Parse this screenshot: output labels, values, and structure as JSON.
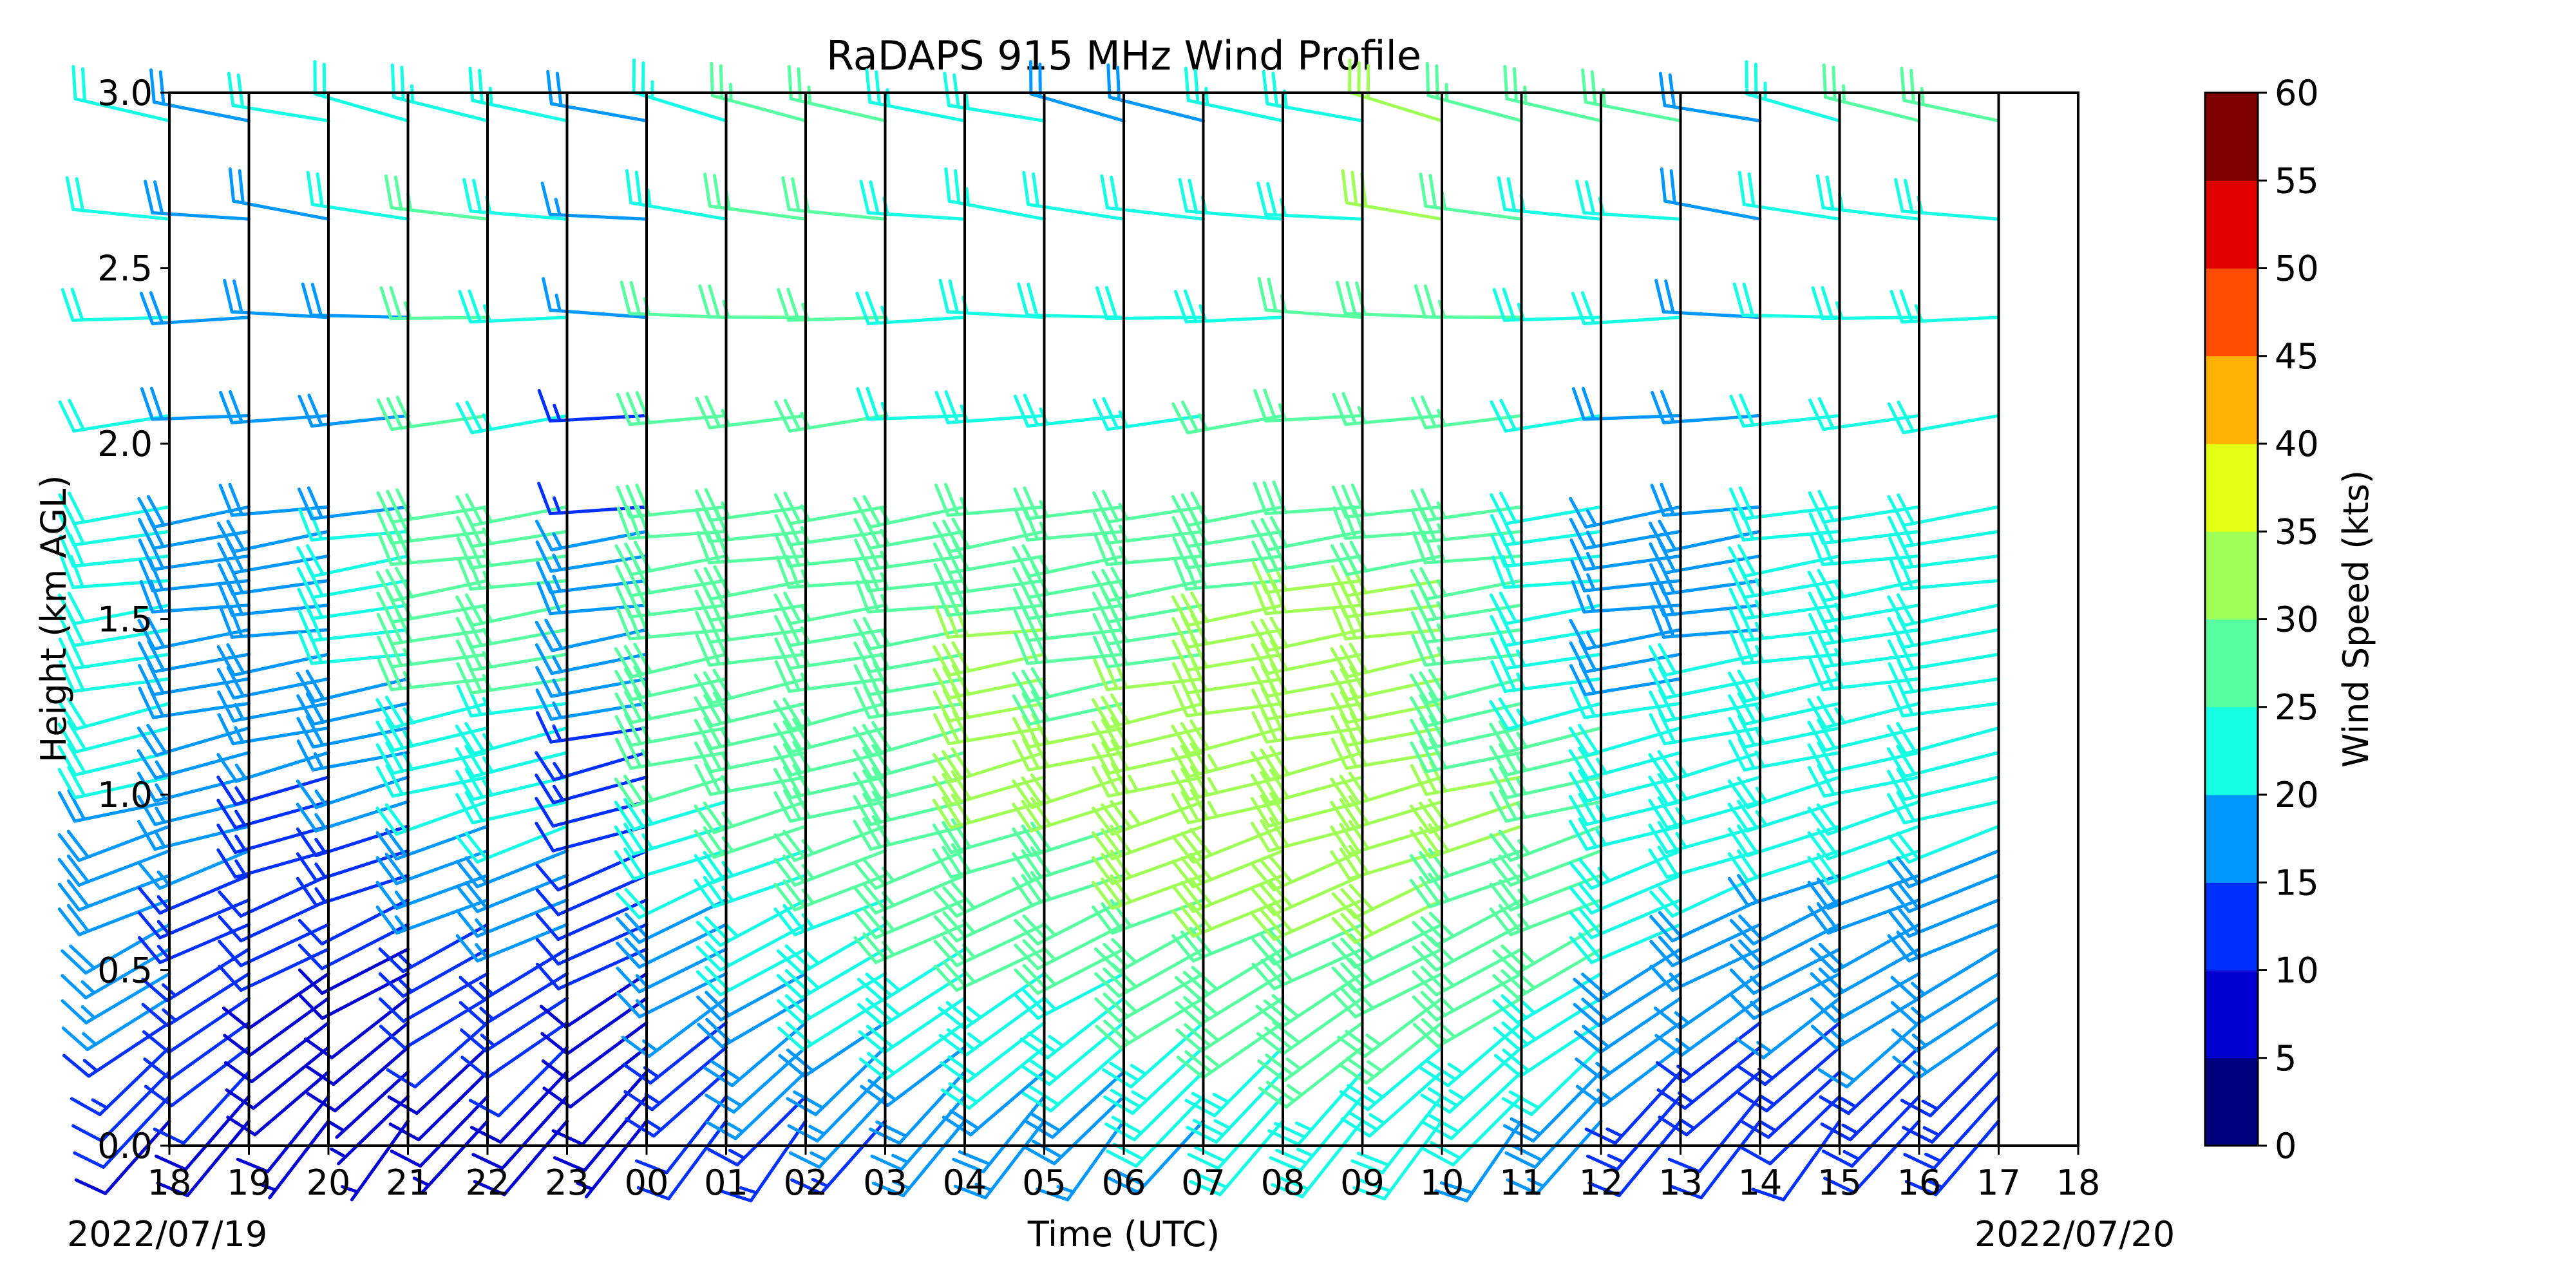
{
  "chart_data": {
    "type": "wind-barb-profile",
    "title": "RaDAPS 915 MHz Wind Profile",
    "xlabel": "Time (UTC)",
    "ylabel": "Height (km AGL)",
    "ylim": [
      0.0,
      3.0
    ],
    "y_ticks": [
      "0.0",
      "0.5",
      "1.0",
      "1.5",
      "2.0",
      "2.5",
      "3.0"
    ],
    "x_ticks": [
      "18",
      "19",
      "20",
      "21",
      "22",
      "23",
      "00",
      "01",
      "02",
      "03",
      "04",
      "05",
      "06",
      "07",
      "08",
      "09",
      "10",
      "11",
      "12",
      "13",
      "14",
      "15",
      "16",
      "17",
      "18"
    ],
    "start_date_label": "2022/07/19",
    "end_date_label": "2022/07/20",
    "lower_levels_km": [
      0.07,
      0.14,
      0.21,
      0.28,
      0.35,
      0.42,
      0.49,
      0.56,
      0.63,
      0.7,
      0.77,
      0.84,
      0.91,
      0.98,
      1.05,
      1.12,
      1.19,
      1.26,
      1.33,
      1.4,
      1.47,
      1.54,
      1.61,
      1.68,
      1.75,
      1.82
    ],
    "upper_levels_km": [
      2.08,
      2.36,
      2.64,
      2.92
    ],
    "direction_profile": [
      {
        "height_km": 0.0,
        "direction_deg": 215
      },
      {
        "height_km": 0.5,
        "direction_deg": 240
      },
      {
        "height_km": 1.0,
        "direction_deg": 255
      },
      {
        "height_km": 1.5,
        "direction_deg": 262
      },
      {
        "height_km": 2.0,
        "direction_deg": 262
      },
      {
        "height_km": 3.0,
        "direction_deg": 285
      }
    ],
    "speed_profile_by_hour": [
      {
        "time": "18",
        "speeds_kts": {
          "0.0": 8,
          "0.5": 17,
          "1.0": 20,
          "1.5": 22,
          "2.0": 22,
          "3.0": 21
        }
      },
      {
        "time": "19",
        "speeds_kts": {
          "0.0": 8,
          "0.5": 13,
          "1.0": 16,
          "1.5": 20,
          "2.0": 18,
          "3.0": 18
        }
      },
      {
        "time": "20",
        "speeds_kts": {
          "0.0": 7,
          "0.5": 10,
          "1.0": 14,
          "1.5": 20,
          "2.0": 18,
          "3.0": 21
        }
      },
      {
        "time": "21",
        "speeds_kts": {
          "0.0": 6,
          "0.5": 9,
          "1.0": 16,
          "1.5": 21,
          "2.0": 19,
          "3.0": 21
        }
      },
      {
        "time": "22",
        "speeds_kts": {
          "0.0": 6,
          "0.5": 12,
          "1.0": 21,
          "1.5": 28,
          "2.0": 28,
          "3.0": 24
        }
      },
      {
        "time": "23",
        "speeds_kts": {
          "0.0": 7,
          "0.5": 14,
          "1.0": 22,
          "1.5": 27,
          "2.0": 25,
          "3.0": 23
        }
      },
      {
        "time": "00",
        "speeds_kts": {
          "0.0": 7,
          "0.5": 10,
          "1.0": 12,
          "1.5": 18,
          "2.0": 13,
          "3.0": 20
        }
      },
      {
        "time": "01",
        "speeds_kts": {
          "0.0": 10,
          "0.5": 16,
          "1.0": 25,
          "1.5": 30,
          "2.0": 28,
          "3.0": 23
        }
      },
      {
        "time": "02",
        "speeds_kts": {
          "0.0": 12,
          "0.5": 20,
          "1.0": 27,
          "1.5": 28,
          "2.0": 27,
          "3.0": 26
        }
      },
      {
        "time": "03",
        "speeds_kts": {
          "0.0": 13,
          "0.5": 22,
          "1.0": 28,
          "1.5": 27,
          "2.0": 26,
          "3.0": 26
        }
      },
      {
        "time": "04",
        "speeds_kts": {
          "0.0": 14,
          "0.5": 24,
          "1.0": 29,
          "1.5": 27,
          "2.0": 24,
          "3.0": 23
        }
      },
      {
        "time": "05",
        "speeds_kts": {
          "0.0": 15,
          "0.5": 25,
          "1.0": 31,
          "1.5": 30,
          "2.0": 25,
          "3.0": 23
        }
      },
      {
        "time": "06",
        "speeds_kts": {
          "0.0": 16,
          "0.5": 25,
          "1.0": 31,
          "1.5": 29,
          "2.0": 24,
          "3.0": 19
        }
      },
      {
        "time": "07",
        "speeds_kts": {
          "0.0": 18,
          "0.5": 27,
          "1.0": 33,
          "1.5": 29,
          "2.0": 24,
          "3.0": 19
        }
      },
      {
        "time": "08",
        "speeds_kts": {
          "0.0": 20,
          "0.5": 28,
          "1.0": 33,
          "1.5": 31,
          "2.0": 26,
          "3.0": 23
        }
      },
      {
        "time": "09",
        "speeds_kts": {
          "0.0": 20,
          "0.5": 29,
          "1.0": 32,
          "1.5": 31,
          "2.0": 27,
          "3.0": 23
        }
      },
      {
        "time": "10",
        "speeds_kts": {
          "0.0": 19,
          "0.5": 29,
          "1.0": 32,
          "1.5": 31,
          "2.0": 27,
          "3.0": 32
        }
      },
      {
        "time": "11",
        "speeds_kts": {
          "0.0": 18,
          "0.5": 27,
          "1.0": 31,
          "1.5": 26,
          "2.0": 25,
          "3.0": 27
        }
      },
      {
        "time": "12",
        "speeds_kts": {
          "0.0": 15,
          "0.5": 25,
          "1.0": 27,
          "1.5": 22,
          "2.0": 21,
          "3.0": 27
        }
      },
      {
        "time": "13",
        "speeds_kts": {
          "0.0": 11,
          "0.5": 19,
          "1.0": 25,
          "1.5": 16,
          "2.0": 17,
          "3.0": 26
        }
      },
      {
        "time": "14",
        "speeds_kts": {
          "0.0": 10,
          "0.5": 16,
          "1.0": 24,
          "1.5": 19,
          "2.0": 18,
          "3.0": 18
        }
      },
      {
        "time": "15",
        "speeds_kts": {
          "0.0": 10,
          "0.5": 16,
          "1.0": 23,
          "1.5": 23,
          "2.0": 21,
          "3.0": 23
        }
      },
      {
        "time": "16",
        "speeds_kts": {
          "0.0": 11,
          "0.5": 17,
          "1.0": 22,
          "1.5": 23,
          "2.0": 21,
          "3.0": 27
        }
      },
      {
        "time": "17",
        "speeds_kts": {
          "0.0": 12,
          "0.5": 17,
          "1.0": 21,
          "1.5": 22,
          "2.0": 21,
          "3.0": 27
        }
      }
    ],
    "colorbar": {
      "label": "Wind Speed (kts)",
      "range": [
        0,
        60
      ],
      "tick_labels": [
        "0",
        "5",
        "10",
        "15",
        "20",
        "25",
        "30",
        "35",
        "40",
        "45",
        "50",
        "55",
        "60"
      ],
      "colors": [
        "#00007f",
        "#0000d0",
        "#0030ff",
        "#0098ff",
        "#14ffe3",
        "#57ffa0",
        "#a0ff57",
        "#e3ff14",
        "#ffb000",
        "#ff4e00",
        "#e30000",
        "#7f0000"
      ]
    }
  }
}
